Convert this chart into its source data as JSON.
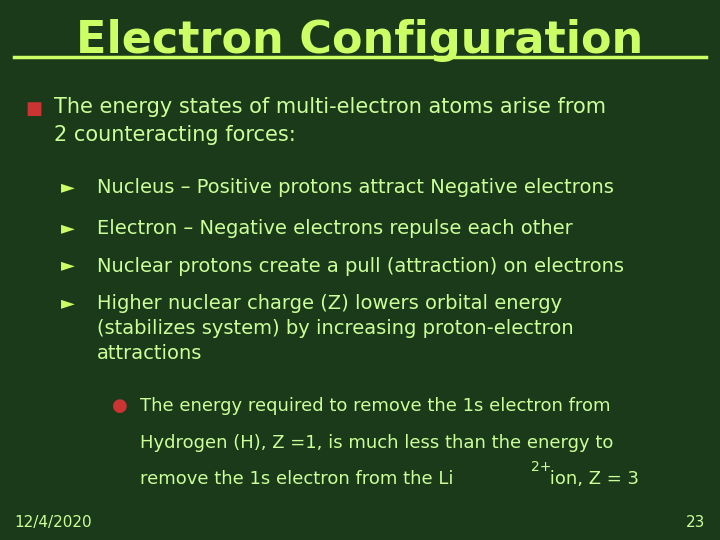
{
  "title": "Electron Configuration",
  "title_color": "#ccff66",
  "title_fontsize": 32,
  "background_color": "#1a3a1a",
  "line_color": "#ccff66",
  "text_color": "#ccff99",
  "bullet_color": "#cc3333",
  "arrow_color": "#ccff66",
  "date_text": "12/4/2020",
  "page_number": "23",
  "footer_fontsize": 11,
  "main_bullet": "The energy states of multi-electron atoms arise from\n2 counteracting forces:",
  "main_bullet_fontsize": 15,
  "sub_bullets": [
    "Nucleus – Positive protons attract Negative electrons",
    "Electron – Negative electrons repulse each other",
    "Nuclear protons create a pull (attraction) on electrons",
    "Higher nuclear charge (Z) lowers orbital energy\n(stabilizes system) by increasing proton-electron\nattractions"
  ],
  "sub_bullet_fontsize": 14,
  "sub_sub_bullet_line1": "The energy required to remove the 1s electron from",
  "sub_sub_bullet_line2": "Hydrogen (H), Z =1, is much less than the energy to",
  "sub_sub_bullet_line3_pre": "remove the 1s electron from the Li",
  "sub_sub_bullet_super": "2+",
  "sub_sub_bullet_line3_post": " ion, Z = 3",
  "sub_sub_fontsize": 13
}
